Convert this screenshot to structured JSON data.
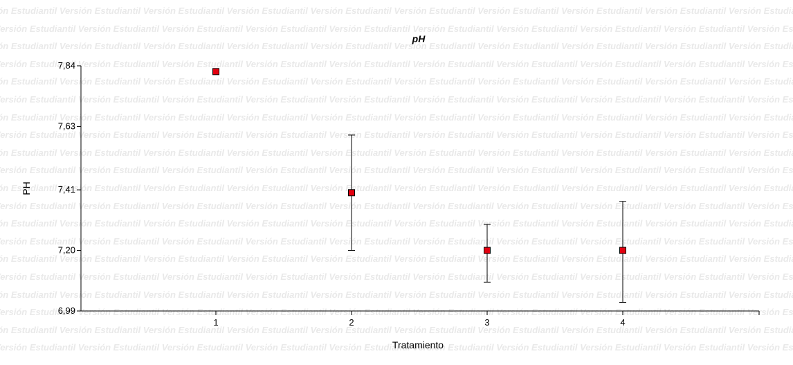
{
  "watermark_text": "Versión Estudiantil",
  "colors": {
    "marker_fill": "#e3000f",
    "marker_stroke": "#000000",
    "axis": "#000000",
    "watermark": "#e9e9e9",
    "background": "#ffffff"
  },
  "chart_data": {
    "type": "scatter",
    "title": "pH",
    "xlabel": "Tratamiento",
    "ylabel": "PH",
    "categories": [
      "1",
      "2",
      "3",
      "4"
    ],
    "y_ticks": [
      "7,84",
      "7,63",
      "7,41",
      "7,20",
      "6,99"
    ],
    "ylim": [
      6.99,
      7.84
    ],
    "grid": false,
    "legend": "none",
    "series": [
      {
        "x": [
          1,
          2,
          3,
          4
        ],
        "y": [
          7.82,
          7.4,
          7.2,
          7.2
        ],
        "error_low": [
          null,
          7.2,
          7.09,
          7.02
        ],
        "error_high": [
          null,
          7.6,
          7.29,
          7.37
        ]
      }
    ]
  }
}
